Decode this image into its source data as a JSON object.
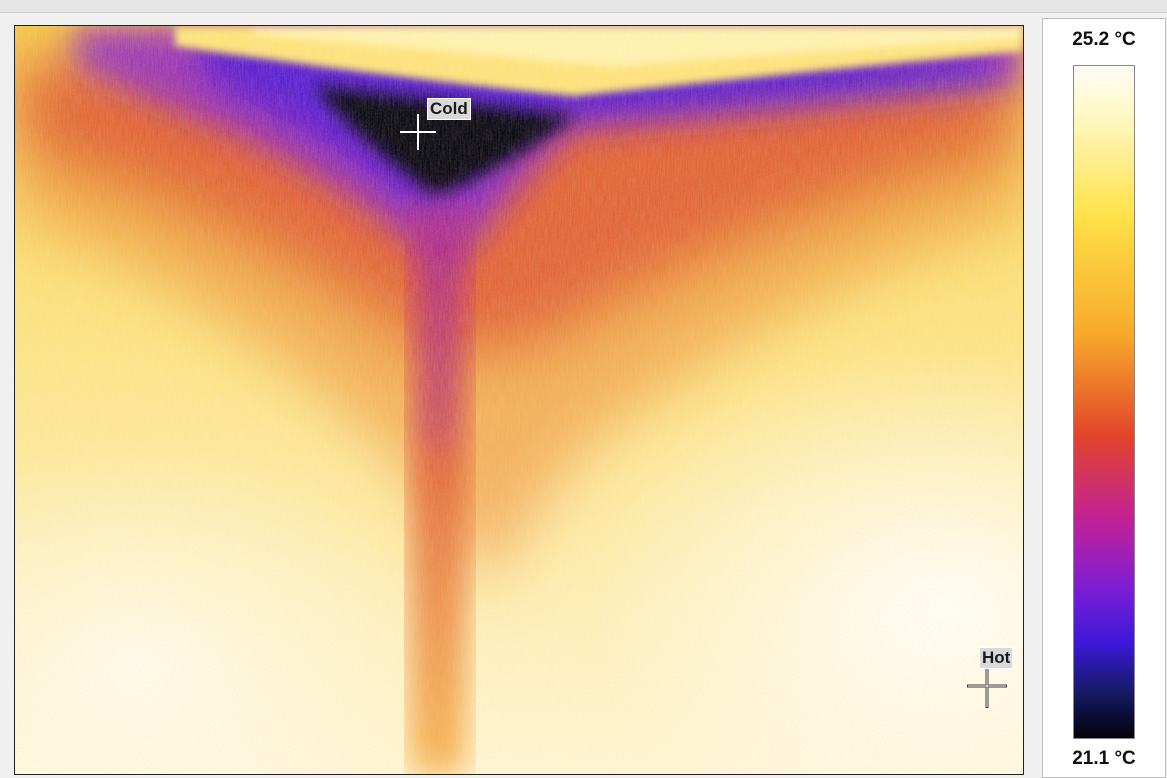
{
  "thermal_view": {
    "markers": {
      "cold": {
        "label": "Cold"
      },
      "hot": {
        "label": "Hot"
      }
    }
  },
  "color_scale": {
    "max_label": "25.2 °C",
    "min_label": "21.1 °C",
    "palette": [
      "#02020a",
      "#161a66",
      "#3a18d6",
      "#7a1ed6",
      "#c0209a",
      "#e2452a",
      "#f7a92a",
      "#ffe24a",
      "#fff7c0",
      "#fffdf6"
    ]
  }
}
